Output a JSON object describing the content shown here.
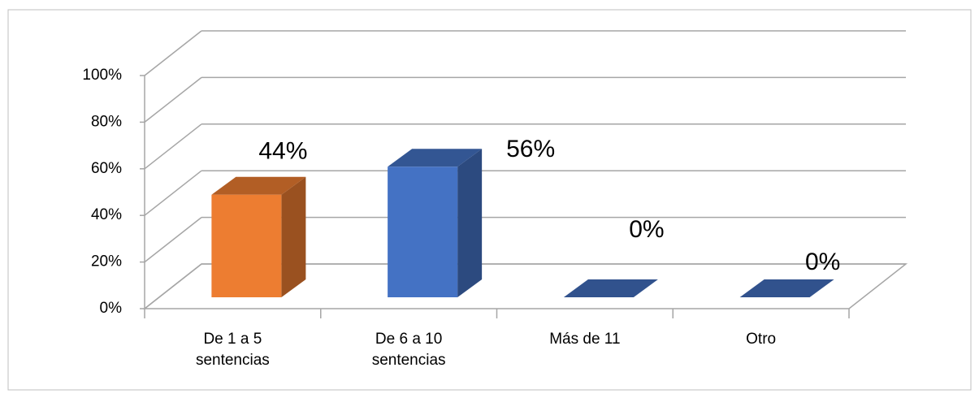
{
  "chart_data": {
    "type": "bar3d",
    "categories": [
      "De 1 a 5 sentencias",
      "De 6 a 10 sentencias",
      "Más de 11",
      "Otro"
    ],
    "values": [
      44,
      56,
      0,
      0
    ],
    "value_labels": [
      "44%",
      "56%",
      "0%",
      "0%"
    ],
    "colors": [
      "#ed7d31",
      "#4472c4",
      "#4472c4",
      "#4472c4"
    ],
    "ylim": [
      0,
      100
    ],
    "yticks": [
      {
        "value": 0,
        "label": "0%"
      },
      {
        "value": 20,
        "label": "20%"
      },
      {
        "value": 40,
        "label": "40%"
      },
      {
        "value": 60,
        "label": "60%"
      },
      {
        "value": 80,
        "label": "80%"
      },
      {
        "value": 100,
        "label": "100%"
      }
    ],
    "grid": true
  }
}
